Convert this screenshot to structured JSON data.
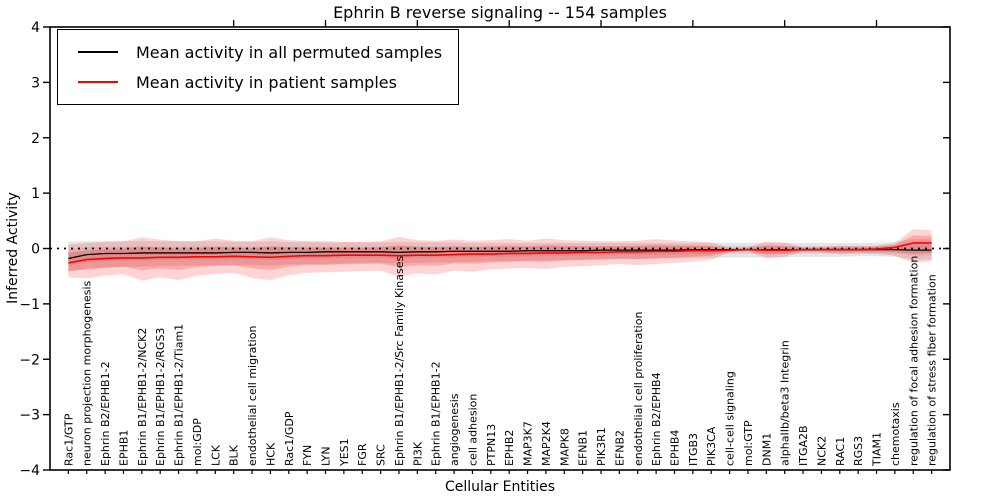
{
  "title": "Ephrin B reverse signaling -- 154 samples",
  "axes": {
    "ylabel": "Inferred Activity",
    "xlabel": "Cellular Entities",
    "ytick_labels": [
      "4",
      "3",
      "2",
      "1",
      "0",
      "−1",
      "−2",
      "−3",
      "−4"
    ],
    "ytick_values": [
      4,
      3,
      2,
      1,
      0,
      -1,
      -2,
      -3,
      -4
    ]
  },
  "legend": {
    "items": [
      {
        "label": "Mean activity in all permuted samples",
        "color": "#000000"
      },
      {
        "label": "Mean activity in patient samples",
        "color": "#ff0000"
      }
    ]
  },
  "chart_data": {
    "type": "line",
    "title": "Ephrin B reverse signaling -- 154 samples",
    "xlabel": "Cellular Entities",
    "ylabel": "Inferred Activity",
    "ylim": [
      -4,
      4
    ],
    "grid": false,
    "legend_position": "upper left",
    "zero_reference_line": 0,
    "colors": {
      "permuted_line": "#000000",
      "patient_line": "#ff0000",
      "permuted_band": "rgba(0,0,0,0.10)",
      "patient_band": "rgba(255,0,0,0.17)"
    },
    "categories": [
      "Rac1/GTP",
      "neuron projection morphogenesis",
      "Ephrin B2/EPHB1-2",
      "EPHB1",
      "Ephrin B1/EPHB1-2/NCK2",
      "Ephrin B1/EPHB1-2/RGS3",
      "Ephrin B1/EPHB1-2/Tiam1",
      "mol:GDP",
      "LCK",
      "BLK",
      "endothelial cell migration",
      "HCK",
      "Rac1/GDP",
      "FYN",
      "LYN",
      "YES1",
      "FGR",
      "SRC",
      "Ephrin B1/EPHB1-2/Src Family Kinases",
      "PI3K",
      "Ephrin B1/EPHB1-2",
      "angiogenesis",
      "cell adhesion",
      "PTPN13",
      "EPHB2",
      "MAP3K7",
      "MAP2K4",
      "MAPK8",
      "EFNB1",
      "PIK3R1",
      "EFNB2",
      "endothelial cell proliferation",
      "Ephrin B2/EPHB4",
      "EPHB4",
      "ITGB3",
      "PIK3CA",
      "cell-cell signaling",
      "mol:GTP",
      "DNM1",
      "alphaIIb/beta3 Integrin",
      "ITGA2B",
      "NCK2",
      "RAC1",
      "RGS3",
      "TIAM1",
      "chemotaxis",
      "regulation of focal adhesion formation",
      "regulation of stress fiber formation"
    ],
    "series": [
      {
        "name": "Mean activity in all permuted samples",
        "values": [
          -0.18,
          -0.11,
          -0.09,
          -0.09,
          -0.08,
          -0.08,
          -0.08,
          -0.08,
          -0.08,
          -0.07,
          -0.07,
          -0.08,
          -0.07,
          -0.07,
          -0.06,
          -0.06,
          -0.06,
          -0.06,
          -0.07,
          -0.06,
          -0.06,
          -0.05,
          -0.05,
          -0.05,
          -0.05,
          -0.04,
          -0.04,
          -0.04,
          -0.04,
          -0.03,
          -0.03,
          -0.03,
          -0.03,
          -0.03,
          -0.02,
          -0.02,
          -0.02,
          -0.02,
          -0.02,
          -0.02,
          -0.02,
          -0.02,
          -0.02,
          -0.02,
          -0.02,
          -0.02,
          -0.03,
          -0.03
        ]
      },
      {
        "name": "Mean activity in patient samples",
        "values": [
          -0.26,
          -0.2,
          -0.18,
          -0.17,
          -0.17,
          -0.16,
          -0.16,
          -0.15,
          -0.15,
          -0.14,
          -0.15,
          -0.16,
          -0.14,
          -0.13,
          -0.13,
          -0.12,
          -0.12,
          -0.12,
          -0.13,
          -0.12,
          -0.12,
          -0.11,
          -0.1,
          -0.1,
          -0.09,
          -0.09,
          -0.08,
          -0.08,
          -0.07,
          -0.07,
          -0.06,
          -0.06,
          -0.05,
          -0.05,
          -0.04,
          -0.04,
          -0.03,
          -0.02,
          -0.03,
          -0.03,
          -0.02,
          -0.02,
          -0.02,
          -0.02,
          -0.01,
          0.02,
          0.1,
          0.1
        ]
      }
    ],
    "bands": [
      {
        "name": "permuted range",
        "upper": [
          0.12,
          0.13,
          0.13,
          0.13,
          0.14,
          0.13,
          0.13,
          0.13,
          0.13,
          0.12,
          0.12,
          0.13,
          0.12,
          0.12,
          0.11,
          0.11,
          0.11,
          0.11,
          0.12,
          0.11,
          0.11,
          0.11,
          0.1,
          0.1,
          0.1,
          0.1,
          0.1,
          0.1,
          0.1,
          0.1,
          0.1,
          0.1,
          0.1,
          0.1,
          0.1,
          0.1,
          0.1,
          0.1,
          0.1,
          0.1,
          0.1,
          0.1,
          0.1,
          0.1,
          0.1,
          0.12,
          0.17,
          0.17
        ],
        "lower": [
          -0.42,
          -0.36,
          -0.34,
          -0.33,
          -0.33,
          -0.32,
          -0.31,
          -0.31,
          -0.3,
          -0.3,
          -0.3,
          -0.31,
          -0.29,
          -0.28,
          -0.28,
          -0.27,
          -0.26,
          -0.26,
          -0.27,
          -0.26,
          -0.25,
          -0.25,
          -0.24,
          -0.23,
          -0.23,
          -0.22,
          -0.22,
          -0.21,
          -0.2,
          -0.2,
          -0.19,
          -0.19,
          -0.18,
          -0.18,
          -0.17,
          -0.17,
          -0.16,
          -0.16,
          -0.16,
          -0.16,
          -0.15,
          -0.15,
          -0.15,
          -0.14,
          -0.14,
          -0.15,
          -0.2,
          -0.2
        ]
      },
      {
        "name": "patient range",
        "upper": [
          0.07,
          0.1,
          0.12,
          0.13,
          0.2,
          0.16,
          0.13,
          0.13,
          0.18,
          0.14,
          0.13,
          0.2,
          0.15,
          0.13,
          0.13,
          0.12,
          0.12,
          0.13,
          0.21,
          0.15,
          0.14,
          0.16,
          0.14,
          0.15,
          0.17,
          0.14,
          0.18,
          0.15,
          0.14,
          0.13,
          0.13,
          0.14,
          0.17,
          0.14,
          0.13,
          0.11,
          0.01,
          0.02,
          0.13,
          0.11,
          0.02,
          0.03,
          0.05,
          0.04,
          0.05,
          0.1,
          0.35,
          0.33
        ],
        "lower": [
          -0.52,
          -0.54,
          -0.49,
          -0.46,
          -0.58,
          -0.52,
          -0.57,
          -0.49,
          -0.46,
          -0.44,
          -0.53,
          -0.57,
          -0.48,
          -0.44,
          -0.43,
          -0.42,
          -0.41,
          -0.4,
          -0.51,
          -0.45,
          -0.47,
          -0.4,
          -0.42,
          -0.38,
          -0.36,
          -0.35,
          -0.37,
          -0.33,
          -0.32,
          -0.3,
          -0.28,
          -0.3,
          -0.28,
          -0.26,
          -0.24,
          -0.2,
          -0.07,
          -0.05,
          -0.18,
          -0.15,
          -0.06,
          -0.07,
          -0.1,
          -0.09,
          -0.1,
          -0.13,
          -0.26,
          -0.23
        ]
      }
    ]
  }
}
